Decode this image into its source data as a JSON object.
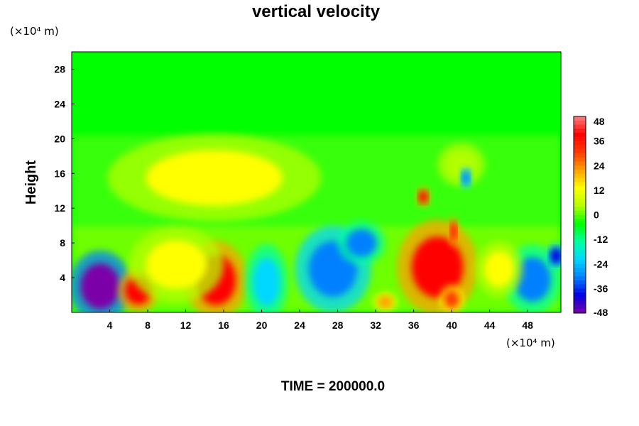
{
  "chart_data": {
    "type": "heatmap",
    "title": "vertical velocity",
    "ylabel": "Height",
    "y_unit": "(×10⁴ m)",
    "x_unit": "(×10⁴ m)",
    "footer": "TIME = 200000.0",
    "xlim": [
      0,
      51.5
    ],
    "ylim": [
      0,
      30
    ],
    "x_ticks": [
      "4",
      "8",
      "12",
      "16",
      "20",
      "24",
      "28",
      "32",
      "36",
      "40",
      "44",
      "48"
    ],
    "y_ticks": [
      "4",
      "8",
      "12",
      "16",
      "20",
      "24",
      "28"
    ],
    "colorbar": {
      "range": [
        -48,
        48
      ],
      "ticks": [
        "48",
        "36",
        "24",
        "12",
        "0",
        "-12",
        "-24",
        "-36",
        "-48"
      ],
      "colors": [
        "#7b00a8",
        "#0000e6",
        "#0080ff",
        "#00d8ff",
        "#00ffa0",
        "#00ff00",
        "#b4ff00",
        "#ffff00",
        "#ffa000",
        "#ff3a00",
        "#ff0000",
        "#ff8080"
      ]
    },
    "features": [
      {
        "x": 3.0,
        "y": 3.0,
        "rx": 2.6,
        "ry": 3.3,
        "value": -48
      },
      {
        "x": 7.0,
        "y": 2.5,
        "rx": 1.7,
        "ry": 2.0,
        "value": 36
      },
      {
        "x": 15.2,
        "y": 3.7,
        "rx": 2.6,
        "ry": 3.6,
        "value": 38
      },
      {
        "x": 20.5,
        "y": 3.5,
        "rx": 1.8,
        "ry": 3.5,
        "value": -20
      },
      {
        "x": 27.5,
        "y": 5.0,
        "rx": 3.2,
        "ry": 4.0,
        "value": -34
      },
      {
        "x": 30.5,
        "y": 8.0,
        "rx": 2.0,
        "ry": 2.0,
        "value": -30
      },
      {
        "x": 38.5,
        "y": 5.2,
        "rx": 3.4,
        "ry": 4.4,
        "value": 40
      },
      {
        "x": 40.0,
        "y": 1.5,
        "rx": 1.0,
        "ry": 1.3,
        "value": 30
      },
      {
        "x": 33.0,
        "y": 1.2,
        "rx": 1.0,
        "ry": 0.9,
        "value": 26
      },
      {
        "x": 48.5,
        "y": 3.8,
        "rx": 2.4,
        "ry": 3.2,
        "value": -30
      },
      {
        "x": 45.0,
        "y": 5.0,
        "rx": 2.0,
        "ry": 2.6,
        "value": 14
      },
      {
        "x": 11.0,
        "y": 5.5,
        "rx": 4.0,
        "ry": 3.5,
        "value": 14
      },
      {
        "x": 15.0,
        "y": 15.5,
        "rx": 9.0,
        "ry": 4.0,
        "value": 9
      },
      {
        "x": 41.0,
        "y": 17.0,
        "rx": 2.0,
        "ry": 2.0,
        "value": 8
      },
      {
        "x": 37.0,
        "y": 13.3,
        "rx": 0.6,
        "ry": 0.9,
        "value": 36
      },
      {
        "x": 41.5,
        "y": 15.5,
        "rx": 0.5,
        "ry": 1.0,
        "value": -34
      },
      {
        "x": 51.0,
        "y": 6.5,
        "rx": 0.8,
        "ry": 1.2,
        "value": -38
      },
      {
        "x": 40.2,
        "y": 9.3,
        "rx": 0.4,
        "ry": 1.4,
        "value": 38
      }
    ]
  }
}
